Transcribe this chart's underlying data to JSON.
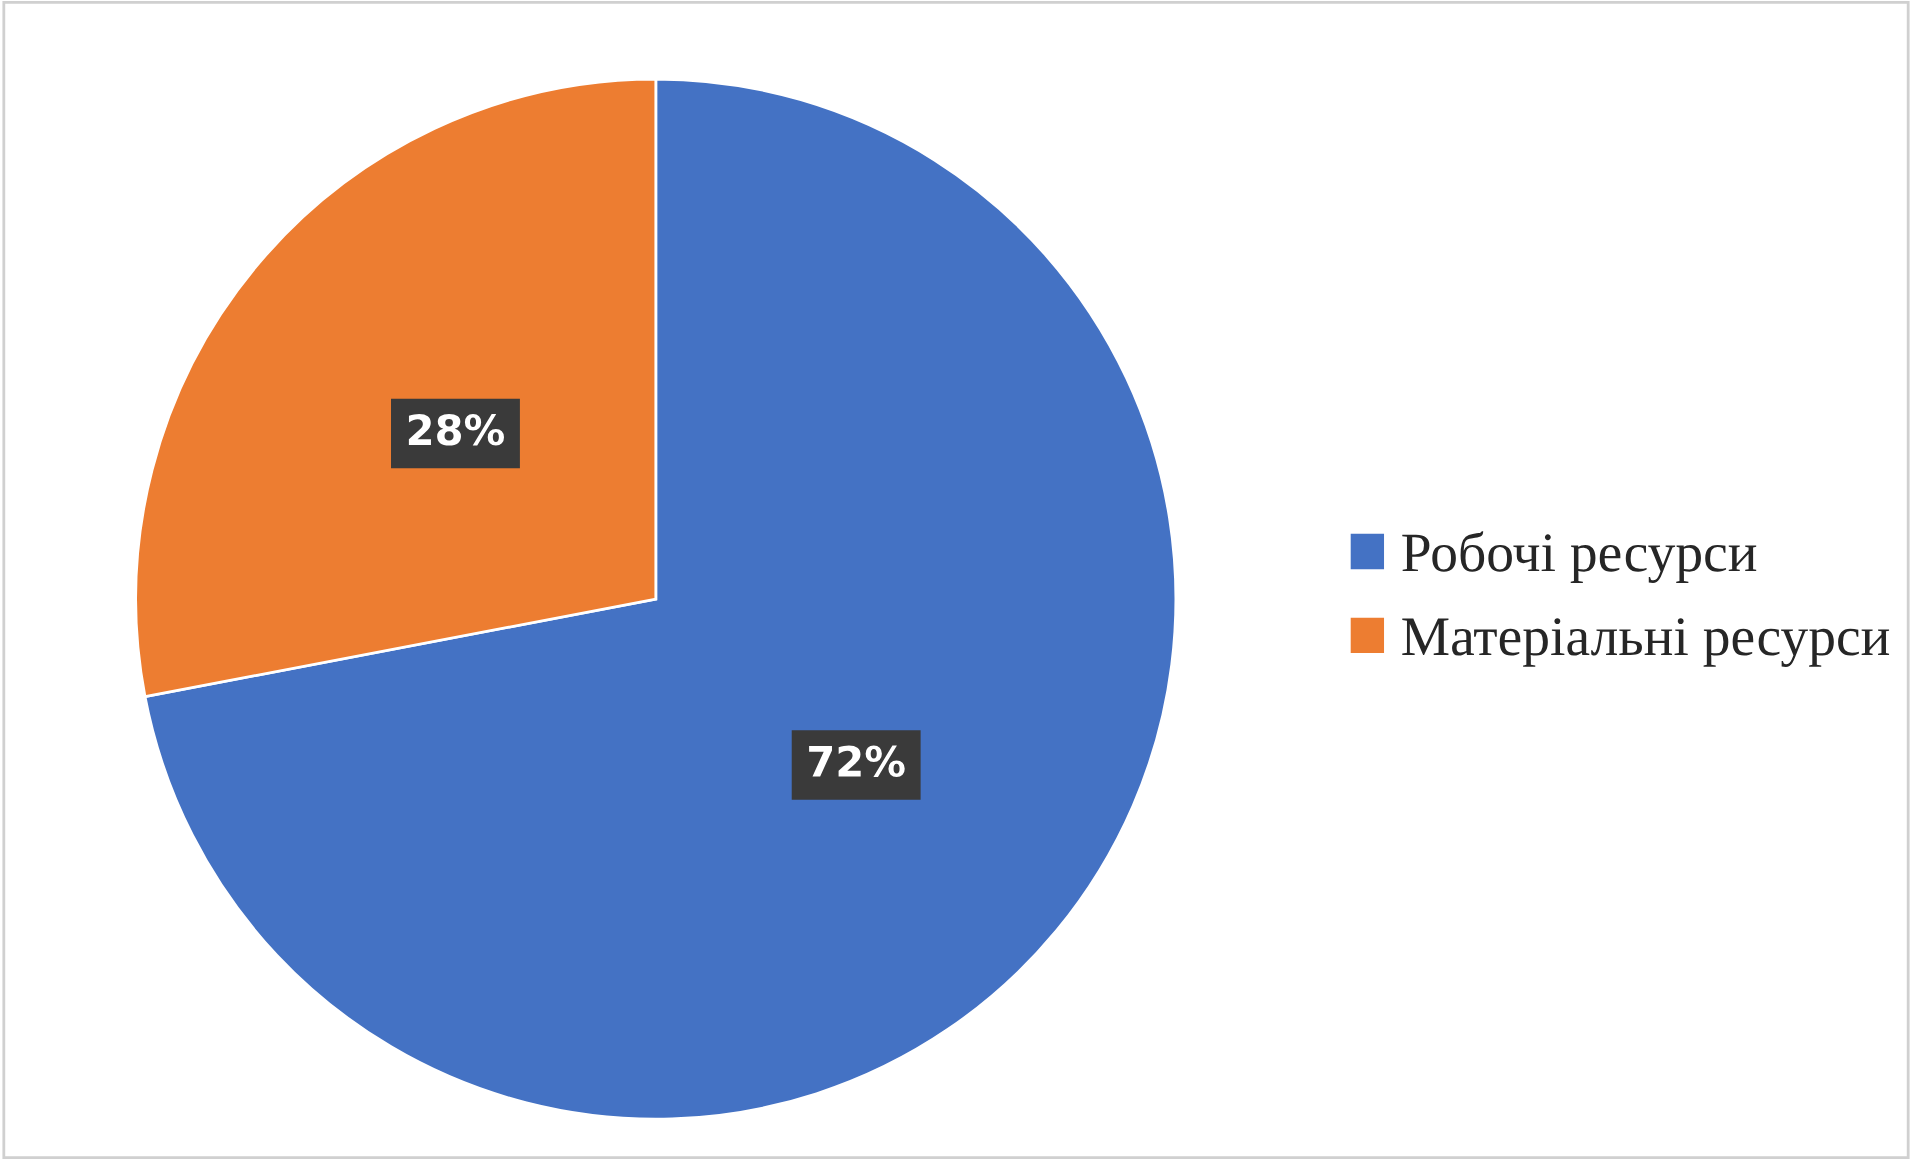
{
  "chart_data": {
    "type": "pie",
    "categories": [
      "Робочі ресурси",
      "Матеріальні ресурси"
    ],
    "values": [
      72,
      28
    ],
    "colors": [
      "#4472c4",
      "#ed7d31"
    ],
    "value_labels": [
      "72%",
      "28%"
    ],
    "legend": "right"
  }
}
